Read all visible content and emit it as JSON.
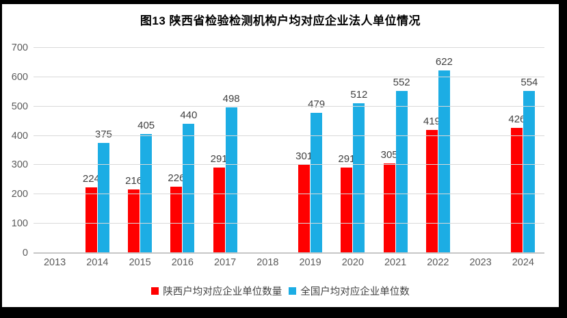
{
  "title": "图13  陕西省检验检测机构户均对应企业法人单位情况",
  "colors": {
    "shaanxi_red": "#FF0000",
    "national_blue": "#1CADE4",
    "gridline": "#D9D9D9",
    "axis_line": "#C6C6C6",
    "tick_text": "#595959",
    "data_label_text": "#3F3F3F",
    "frame": "#000000",
    "background": "#FFFFFF"
  },
  "chart_data": {
    "type": "bar",
    "title": "图13  陕西省检验检测机构户均对应企业法人单位情况",
    "categories": [
      "2013",
      "2014",
      "2015",
      "2016",
      "2017",
      "2018",
      "2019",
      "2020",
      "2021",
      "2022",
      "2023",
      "2024"
    ],
    "series": [
      {
        "name": "陕西户均对应企业单位数量",
        "color": "#FF0000",
        "values": [
          null,
          224,
          216,
          226,
          291,
          null,
          301,
          291,
          305,
          419,
          null,
          426
        ]
      },
      {
        "name": "全国户均对应企业单位数",
        "color": "#1CADE4",
        "values": [
          null,
          375,
          405,
          440,
          498,
          null,
          479,
          512,
          552,
          622,
          null,
          554
        ]
      }
    ],
    "xlabel": "",
    "ylabel": "",
    "ylim": [
      0,
      700
    ],
    "yticks": [
      0,
      100,
      200,
      300,
      400,
      500,
      600,
      700
    ],
    "grid": true,
    "data_labels": true,
    "legend_position": "bottom"
  },
  "legend": {
    "items": [
      {
        "label": "陕西户均对应企业单位数量",
        "color": "#FF0000"
      },
      {
        "label": "全国户均对应企业单位数",
        "color": "#1CADE4"
      }
    ]
  }
}
